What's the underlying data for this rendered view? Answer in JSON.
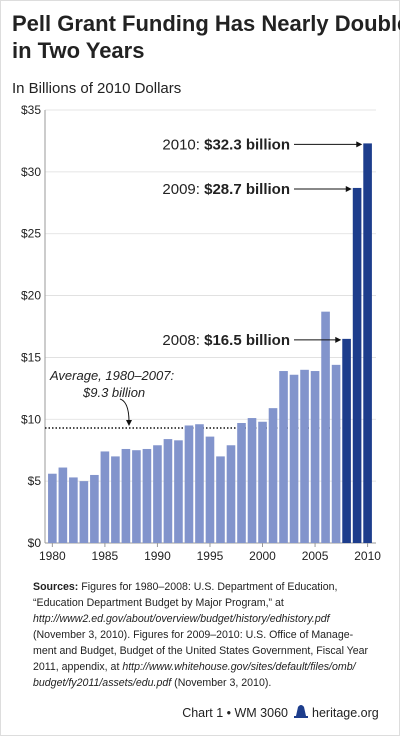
{
  "chart_data": {
    "type": "bar",
    "title": [
      "Pell Grant Funding Has Nearly Doubled",
      "in Two Years"
    ],
    "subtitle": "In Billions of 2010 Dollars",
    "x": [
      1980,
      1981,
      1982,
      1983,
      1984,
      1985,
      1986,
      1987,
      1988,
      1989,
      1990,
      1991,
      1992,
      1993,
      1994,
      1995,
      1996,
      1997,
      1998,
      1999,
      2000,
      2001,
      2002,
      2003,
      2004,
      2005,
      2006,
      2007,
      2008,
      2009,
      2010
    ],
    "values": [
      5.6,
      6.1,
      5.3,
      5.0,
      5.5,
      7.4,
      7.0,
      7.6,
      7.5,
      7.6,
      7.9,
      8.4,
      8.3,
      9.5,
      9.6,
      8.6,
      7.0,
      7.9,
      9.7,
      10.1,
      9.8,
      10.9,
      13.9,
      13.6,
      14.0,
      13.9,
      18.7,
      14.4,
      16.5,
      28.7,
      32.3
    ],
    "colors": [
      "#8294cc",
      "#8294cc",
      "#8294cc",
      "#8294cc",
      "#8294cc",
      "#8294cc",
      "#8294cc",
      "#8294cc",
      "#8294cc",
      "#8294cc",
      "#8294cc",
      "#8294cc",
      "#8294cc",
      "#8294cc",
      "#8294cc",
      "#8294cc",
      "#8294cc",
      "#8294cc",
      "#8294cc",
      "#8294cc",
      "#8294cc",
      "#8294cc",
      "#8294cc",
      "#8294cc",
      "#8294cc",
      "#8294cc",
      "#8294cc",
      "#8294cc",
      "#1d3d8c",
      "#1d3d8c",
      "#1d3d8c"
    ],
    "value_labels": [
      null,
      null,
      null,
      null,
      null,
      null,
      null,
      null,
      null,
      null,
      null,
      null,
      null,
      null,
      null,
      null,
      null,
      null,
      null,
      null,
      null,
      null,
      null,
      null,
      null,
      null,
      null,
      null,
      "2008: $16.5 billion",
      "2009: $28.7 billion",
      "2010: $32.3 billion"
    ],
    "xlim": [
      1979.3,
      2010.8
    ],
    "xticks": [
      1980,
      1985,
      1990,
      1995,
      2000,
      2005,
      2010
    ],
    "ylim": [
      0,
      35
    ],
    "yticks": [
      {
        "value": 0,
        "label": "$0"
      },
      {
        "value": 5,
        "label": "$5"
      },
      {
        "value": 10,
        "label": "$10"
      },
      {
        "value": 15,
        "label": "$15"
      },
      {
        "value": 20,
        "label": "$20"
      },
      {
        "value": 25,
        "label": "$25"
      },
      {
        "value": 30,
        "label": "$30"
      },
      {
        "value": 35,
        "label": "$35"
      }
    ],
    "grid": true,
    "average": {
      "value": 9.3,
      "label": [
        "Average, 1980–2007:",
        "$9.3 billion"
      ]
    },
    "sources": [
      [
        {
          "text": "Sources:",
          "style": "bold"
        },
        {
          "text": " Figures for 1980–2008: U.S. Department of Education,",
          "style": "normal"
        }
      ],
      [
        {
          "text": "“Education Department Budget by Major Program,” at",
          "style": "normal"
        }
      ],
      [
        {
          "text": "http://www2.ed.gov/about/overview/budget/history/edhistory.pdf",
          "style": "italic"
        }
      ],
      [
        {
          "text": "(November 3, 2010). Figures for 2009–2010: U.S. Office of Manage-",
          "style": "normal"
        }
      ],
      [
        {
          "text": "ment and Budget, Budget of the United States Government, Fiscal Year",
          "style": "normal"
        }
      ],
      [
        {
          "text": "2011, appendix, at ",
          "style": "normal"
        },
        {
          "text": "http://www.whitehouse.gov/sites/default/files/omb/",
          "style": "italic"
        }
      ],
      [
        {
          "text": "budget/fy2011/assets/edu.pdf",
          "style": "italic"
        },
        {
          "text": " (November 3, 2010).",
          "style": "normal"
        }
      ]
    ],
    "footer": {
      "chart_label": "Chart 1 • WM 3060",
      "site": "heritage.org"
    }
  }
}
